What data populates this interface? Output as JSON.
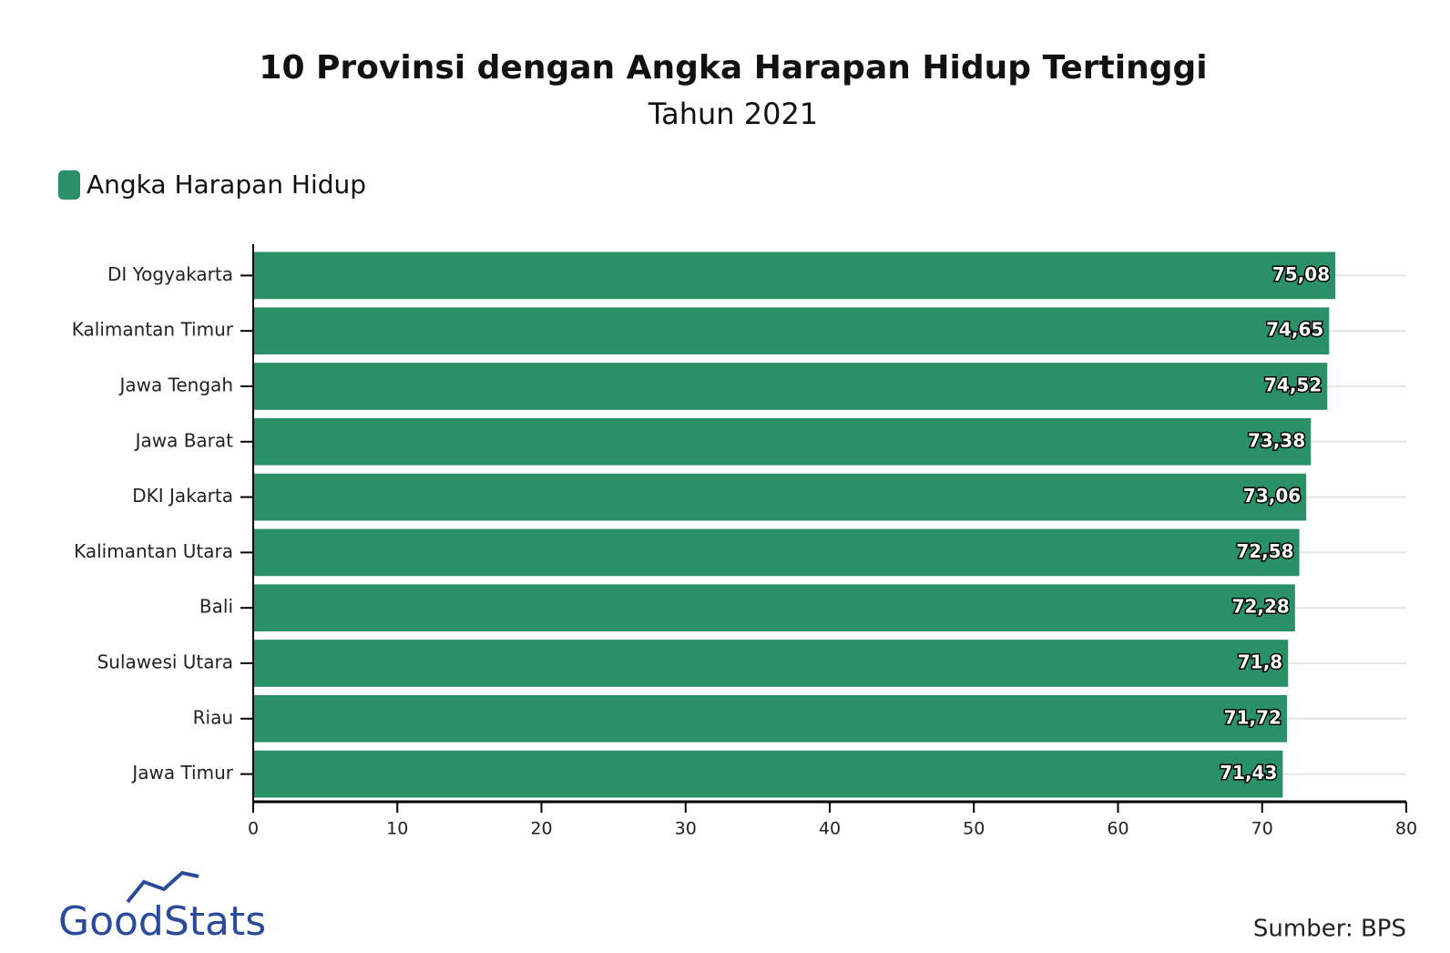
{
  "chart_data": {
    "type": "bar",
    "orientation": "horizontal",
    "title": "10 Provinsi dengan Angka Harapan Hidup Tertinggi",
    "subtitle": "Tahun 2021",
    "categories": [
      "DI Yogyakarta",
      "Kalimantan Timur",
      "Jawa Tengah",
      "Jawa Barat",
      "DKI Jakarta",
      "Kalimantan Utara",
      "Bali",
      "Sulawesi Utara",
      "Riau",
      "Jawa Timur"
    ],
    "series": [
      {
        "name": "Angka Harapan Hidup",
        "color": "#2a9067",
        "values": [
          75.08,
          74.65,
          74.52,
          73.38,
          73.06,
          72.58,
          72.28,
          71.8,
          71.72,
          71.43
        ],
        "value_labels": [
          "75,08",
          "74,65",
          "74,52",
          "73,38",
          "73,06",
          "72,58",
          "72,28",
          "71,8",
          "71,72",
          "71,43"
        ]
      }
    ],
    "xlim": [
      0,
      80
    ],
    "xticks": [
      0,
      10,
      20,
      30,
      40,
      50,
      60,
      70,
      80
    ],
    "grid": true,
    "legend": "top-left"
  },
  "logo": "GoodStats",
  "source": "Sumber: BPS"
}
